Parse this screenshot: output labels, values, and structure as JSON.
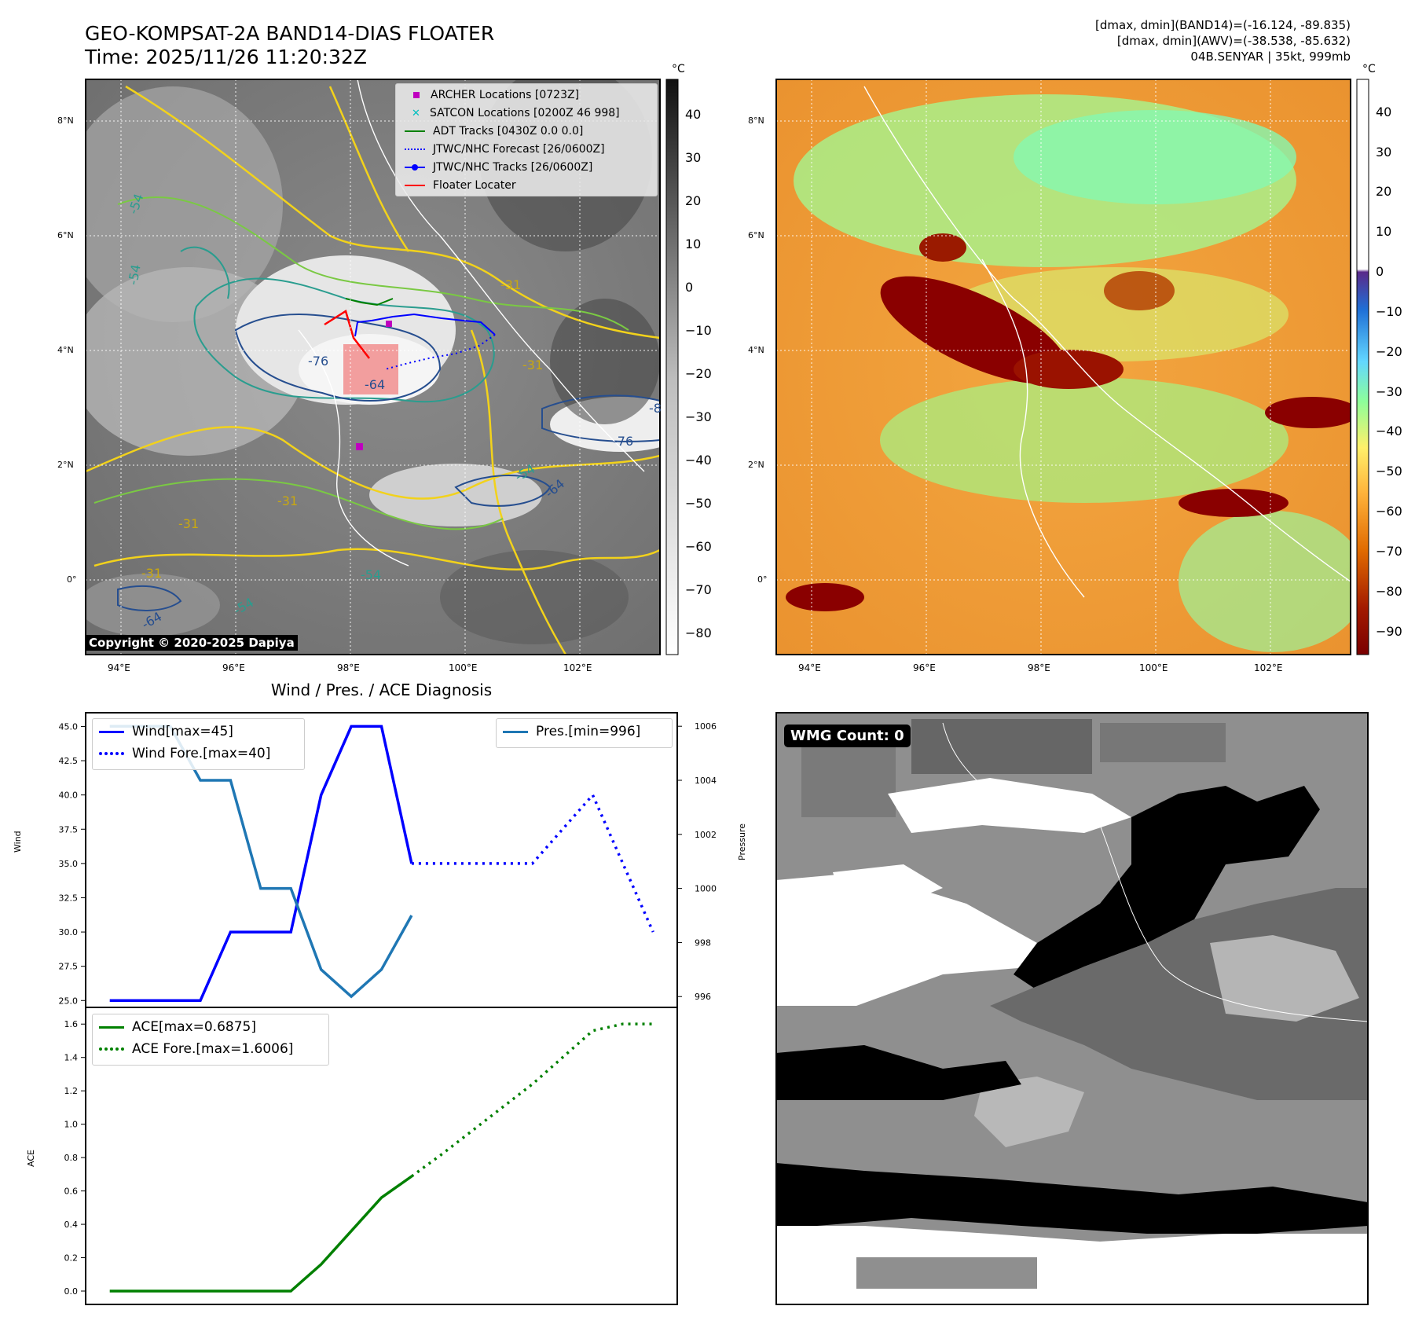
{
  "header": {
    "title_line1": "GEO-KOMPSAT-2A BAND14-DIAS FLOATER",
    "title_line2": "Time: 2025/11/26 11:20:32Z",
    "info_line1": "[dmax, dmin](BAND14)=(-16.124, -89.835)",
    "info_line2": "[dmax, dmin](AWV)=(-38.538, -85.632)",
    "info_line3": "04B.SENYAR | 35kt, 999mb"
  },
  "ir_panel": {
    "lon_labels": [
      "94°E",
      "96°E",
      "98°E",
      "100°E",
      "102°E"
    ],
    "lat_labels": [
      "8°N",
      "6°N",
      "4°N",
      "2°N",
      "0°"
    ],
    "copyright": "Copyright © 2020-2025 Dapiya",
    "contour_labels": [
      "-54",
      "-54",
      "-31",
      "-76",
      "-64",
      "-31",
      "-76",
      "-8",
      "-31",
      "-31",
      "-54",
      "-64",
      "-54",
      "-54",
      "-64",
      "-31"
    ],
    "legend": [
      {
        "label": "ARCHER Locations [0723Z]",
        "marker": "square",
        "color": "#bf00bf"
      },
      {
        "label": "SATCON Locations [0200Z 46 998]",
        "marker": "x",
        "color": "#00bfbf"
      },
      {
        "label": "ADT Tracks [0430Z 0.0 0.0]",
        "marker": "line",
        "color": "#008000"
      },
      {
        "label": "JTWC/NHC Forecast [26/0600Z]",
        "marker": "dotted",
        "color": "#0000ff"
      },
      {
        "label": "JTWC/NHC Tracks [26/0600Z]",
        "marker": "line-dot",
        "color": "#0000ff"
      },
      {
        "label": "Floater Locater",
        "marker": "line",
        "color": "#ff0000"
      }
    ],
    "colorbar": {
      "unit": "°C",
      "ticks": [
        40,
        30,
        20,
        10,
        0,
        -10,
        -20,
        -30,
        -40,
        -50,
        -60,
        -70,
        -80
      ]
    }
  },
  "awv_panel": {
    "lon_labels": [
      "94°E",
      "96°E",
      "98°E",
      "100°E",
      "102°E"
    ],
    "lat_labels": [
      "8°N",
      "6°N",
      "4°N",
      "2°N",
      "0°"
    ],
    "colorbar": {
      "unit": "°C",
      "ticks": [
        40,
        30,
        20,
        10,
        0,
        -10,
        -20,
        -30,
        -40,
        -50,
        -60,
        -70,
        -80,
        -90
      ]
    }
  },
  "wmg_panel": {
    "badge": "WMG Count: 0"
  },
  "diag_title": "Wind / Pres. / ACE Diagnosis",
  "chart_data": [
    {
      "type": "line",
      "title": "Wind / Pres. / ACE Diagnosis",
      "ylabel": "Wind",
      "ylabel_right": "Pressure",
      "ylim": [
        24.5,
        46
      ],
      "ylim_right": [
        995.6,
        1006.5
      ],
      "yticks": [
        "45.0",
        "42.5",
        "40.0",
        "37.5",
        "35.0",
        "32.5",
        "30.0",
        "27.5",
        "25.0"
      ],
      "yticks_right": [
        "1006",
        "1004",
        "1002",
        "1000",
        "998",
        "996"
      ],
      "series": [
        {
          "name": "Wind[max=45]",
          "style": "solid",
          "color": "#0000ff",
          "axis": "left",
          "x": [
            0,
            1,
            2,
            3,
            4,
            5,
            6,
            7,
            8,
            9,
            10
          ],
          "values": [
            25,
            25,
            25,
            25,
            30,
            30,
            30,
            40,
            45,
            45,
            35
          ]
        },
        {
          "name": "Wind Fore.[max=40]",
          "style": "dotted",
          "color": "#0000ff",
          "axis": "left",
          "x": [
            10,
            11,
            12,
            13,
            14,
            15,
            16,
            17,
            18
          ],
          "values": [
            35,
            35,
            35,
            35,
            35,
            37.5,
            40,
            35,
            30
          ]
        },
        {
          "name": "Pres.[min=996]",
          "style": "solid",
          "color": "#1f77b4",
          "axis": "right",
          "x": [
            0,
            1,
            2,
            3,
            4,
            5,
            6,
            7,
            8,
            9,
            10
          ],
          "values": [
            1006,
            1006,
            1006,
            1004,
            1004,
            1000,
            1000,
            997,
            996,
            997,
            999
          ]
        }
      ]
    },
    {
      "type": "line",
      "ylabel": "ACE",
      "ylim": [
        -0.08,
        1.7
      ],
      "yticks": [
        "1.6",
        "1.4",
        "1.2",
        "1.0",
        "0.8",
        "0.6",
        "0.4",
        "0.2",
        "0.0"
      ],
      "series": [
        {
          "name": "ACE[max=0.6875]",
          "style": "solid",
          "color": "#008000",
          "x": [
            0,
            1,
            2,
            3,
            4,
            5,
            6,
            7,
            8,
            9,
            10
          ],
          "values": [
            0,
            0,
            0,
            0,
            0,
            0,
            0,
            0.16,
            0.36,
            0.56,
            0.6875
          ]
        },
        {
          "name": "ACE Fore.[max=1.6006]",
          "style": "dotted",
          "color": "#008000",
          "x": [
            10,
            11,
            12,
            13,
            14,
            15,
            16,
            17,
            18
          ],
          "values": [
            0.6875,
            0.82,
            0.96,
            1.1,
            1.24,
            1.4,
            1.56,
            1.6006,
            1.6006
          ]
        }
      ]
    }
  ]
}
